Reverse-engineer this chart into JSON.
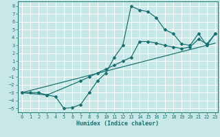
{
  "xlabel": "Humidex (Indice chaleur)",
  "bg_color": "#c8e8e8",
  "grid_color": "#ffffff",
  "line_color": "#1a7070",
  "xlim": [
    -0.5,
    23.3
  ],
  "ylim": [
    -5.5,
    8.6
  ],
  "xticks": [
    0,
    1,
    2,
    3,
    4,
    5,
    6,
    7,
    8,
    9,
    10,
    11,
    12,
    13,
    14,
    15,
    16,
    17,
    18,
    19,
    20,
    21,
    22,
    23
  ],
  "yticks": [
    -5,
    -4,
    -3,
    -2,
    -1,
    0,
    1,
    2,
    3,
    4,
    5,
    6,
    7,
    8
  ],
  "line1_x": [
    0,
    1,
    2,
    3,
    4,
    5,
    6,
    7,
    8,
    9,
    10,
    11,
    12,
    13,
    14,
    15,
    16,
    17,
    18,
    19,
    20,
    21,
    22,
    23
  ],
  "line1_y": [
    -3.0,
    -3.0,
    -3.0,
    -3.3,
    -3.5,
    -5.0,
    -4.9,
    -4.5,
    -3.0,
    -1.5,
    -0.5,
    1.5,
    3.0,
    8.0,
    7.5,
    7.3,
    6.5,
    5.0,
    4.5,
    3.2,
    3.0,
    4.5,
    3.0,
    4.5
  ],
  "line2_x": [
    0,
    23
  ],
  "line2_y": [
    -3.0,
    3.3
  ],
  "line3_x": [
    0,
    3,
    7,
    8,
    9,
    10,
    11,
    12,
    13,
    14,
    15,
    16,
    17,
    18,
    19,
    20,
    21,
    22,
    23
  ],
  "line3_y": [
    -3.0,
    -3.3,
    -1.5,
    -1.0,
    -0.5,
    0.0,
    0.5,
    1.0,
    1.5,
    3.5,
    3.5,
    3.3,
    3.0,
    2.8,
    2.6,
    2.8,
    3.8,
    3.2,
    4.5
  ]
}
